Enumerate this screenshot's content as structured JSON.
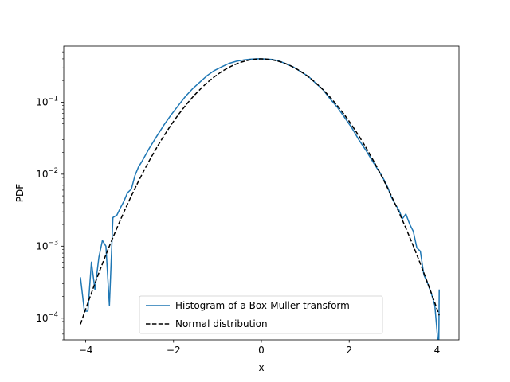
{
  "chart_data": {
    "type": "line",
    "title": "",
    "xlabel": "x",
    "ylabel": "PDF",
    "xlim": [
      -4.5,
      4.5
    ],
    "ylim": [
      5e-05,
      0.6
    ],
    "yscale": "log",
    "grid": false,
    "legend_position": "lower center",
    "x_ticks": [
      -4,
      -2,
      0,
      2,
      4
    ],
    "x_tick_labels": [
      "−4",
      "−2",
      "0",
      "2",
      "4"
    ],
    "y_ticks": [
      0.0001,
      0.001,
      0.01,
      0.1
    ],
    "y_tick_labels": [
      {
        "base": "10",
        "exp": "−4"
      },
      {
        "base": "10",
        "exp": "−3"
      },
      {
        "base": "10",
        "exp": "−2"
      },
      {
        "base": "10",
        "exp": "−1"
      }
    ],
    "series": [
      {
        "name": "Histogram of a Box-Muller transform",
        "color": "#1f77b4",
        "style": "solid",
        "x": [
          -4.12,
          -4.03,
          -3.95,
          -3.87,
          -3.79,
          -3.7,
          -3.62,
          -3.54,
          -3.46,
          -3.38,
          -3.29,
          -3.21,
          -3.13,
          -3.05,
          -2.96,
          -2.88,
          -2.8,
          -2.72,
          -2.55,
          -2.39,
          -2.22,
          -2.06,
          -1.89,
          -1.73,
          -1.56,
          -1.4,
          -1.23,
          -1.07,
          -0.9,
          -0.74,
          -0.57,
          -0.41,
          -0.25,
          -0.08,
          0.08,
          0.25,
          0.41,
          0.57,
          0.74,
          0.9,
          1.07,
          1.23,
          1.4,
          1.56,
          1.73,
          1.89,
          2.06,
          2.22,
          2.39,
          2.55,
          2.72,
          2.8,
          2.88,
          2.96,
          3.05,
          3.13,
          3.21,
          3.29,
          3.38,
          3.46,
          3.54,
          3.62,
          3.7,
          3.79,
          3.87,
          3.95,
          4.03,
          4.04,
          4.05
        ],
        "y": [
          0.00037,
          0.000125,
          0.000125,
          0.0006,
          0.00025,
          0.0007,
          0.0012,
          0.001,
          0.00015,
          0.0025,
          0.0027,
          0.0034,
          0.0042,
          0.0055,
          0.0062,
          0.0095,
          0.0125,
          0.015,
          0.023,
          0.033,
          0.048,
          0.066,
          0.09,
          0.12,
          0.155,
          0.19,
          0.235,
          0.275,
          0.31,
          0.345,
          0.37,
          0.385,
          0.395,
          0.4,
          0.398,
          0.392,
          0.372,
          0.34,
          0.305,
          0.265,
          0.228,
          0.185,
          0.15,
          0.112,
          0.085,
          0.062,
          0.044,
          0.03,
          0.021,
          0.0145,
          0.01,
          0.0082,
          0.0065,
          0.0048,
          0.0038,
          0.0032,
          0.0024,
          0.0028,
          0.002,
          0.0016,
          0.00095,
          0.00085,
          0.0004,
          0.0003,
          0.00022,
          0.00015,
          4e-05,
          4e-05,
          0.00025
        ]
      },
      {
        "name": "Normal distribution",
        "color": "#000000",
        "style": "dashed",
        "function": "normal_pdf",
        "x_range": [
          -4.12,
          4.05
        ]
      }
    ]
  }
}
